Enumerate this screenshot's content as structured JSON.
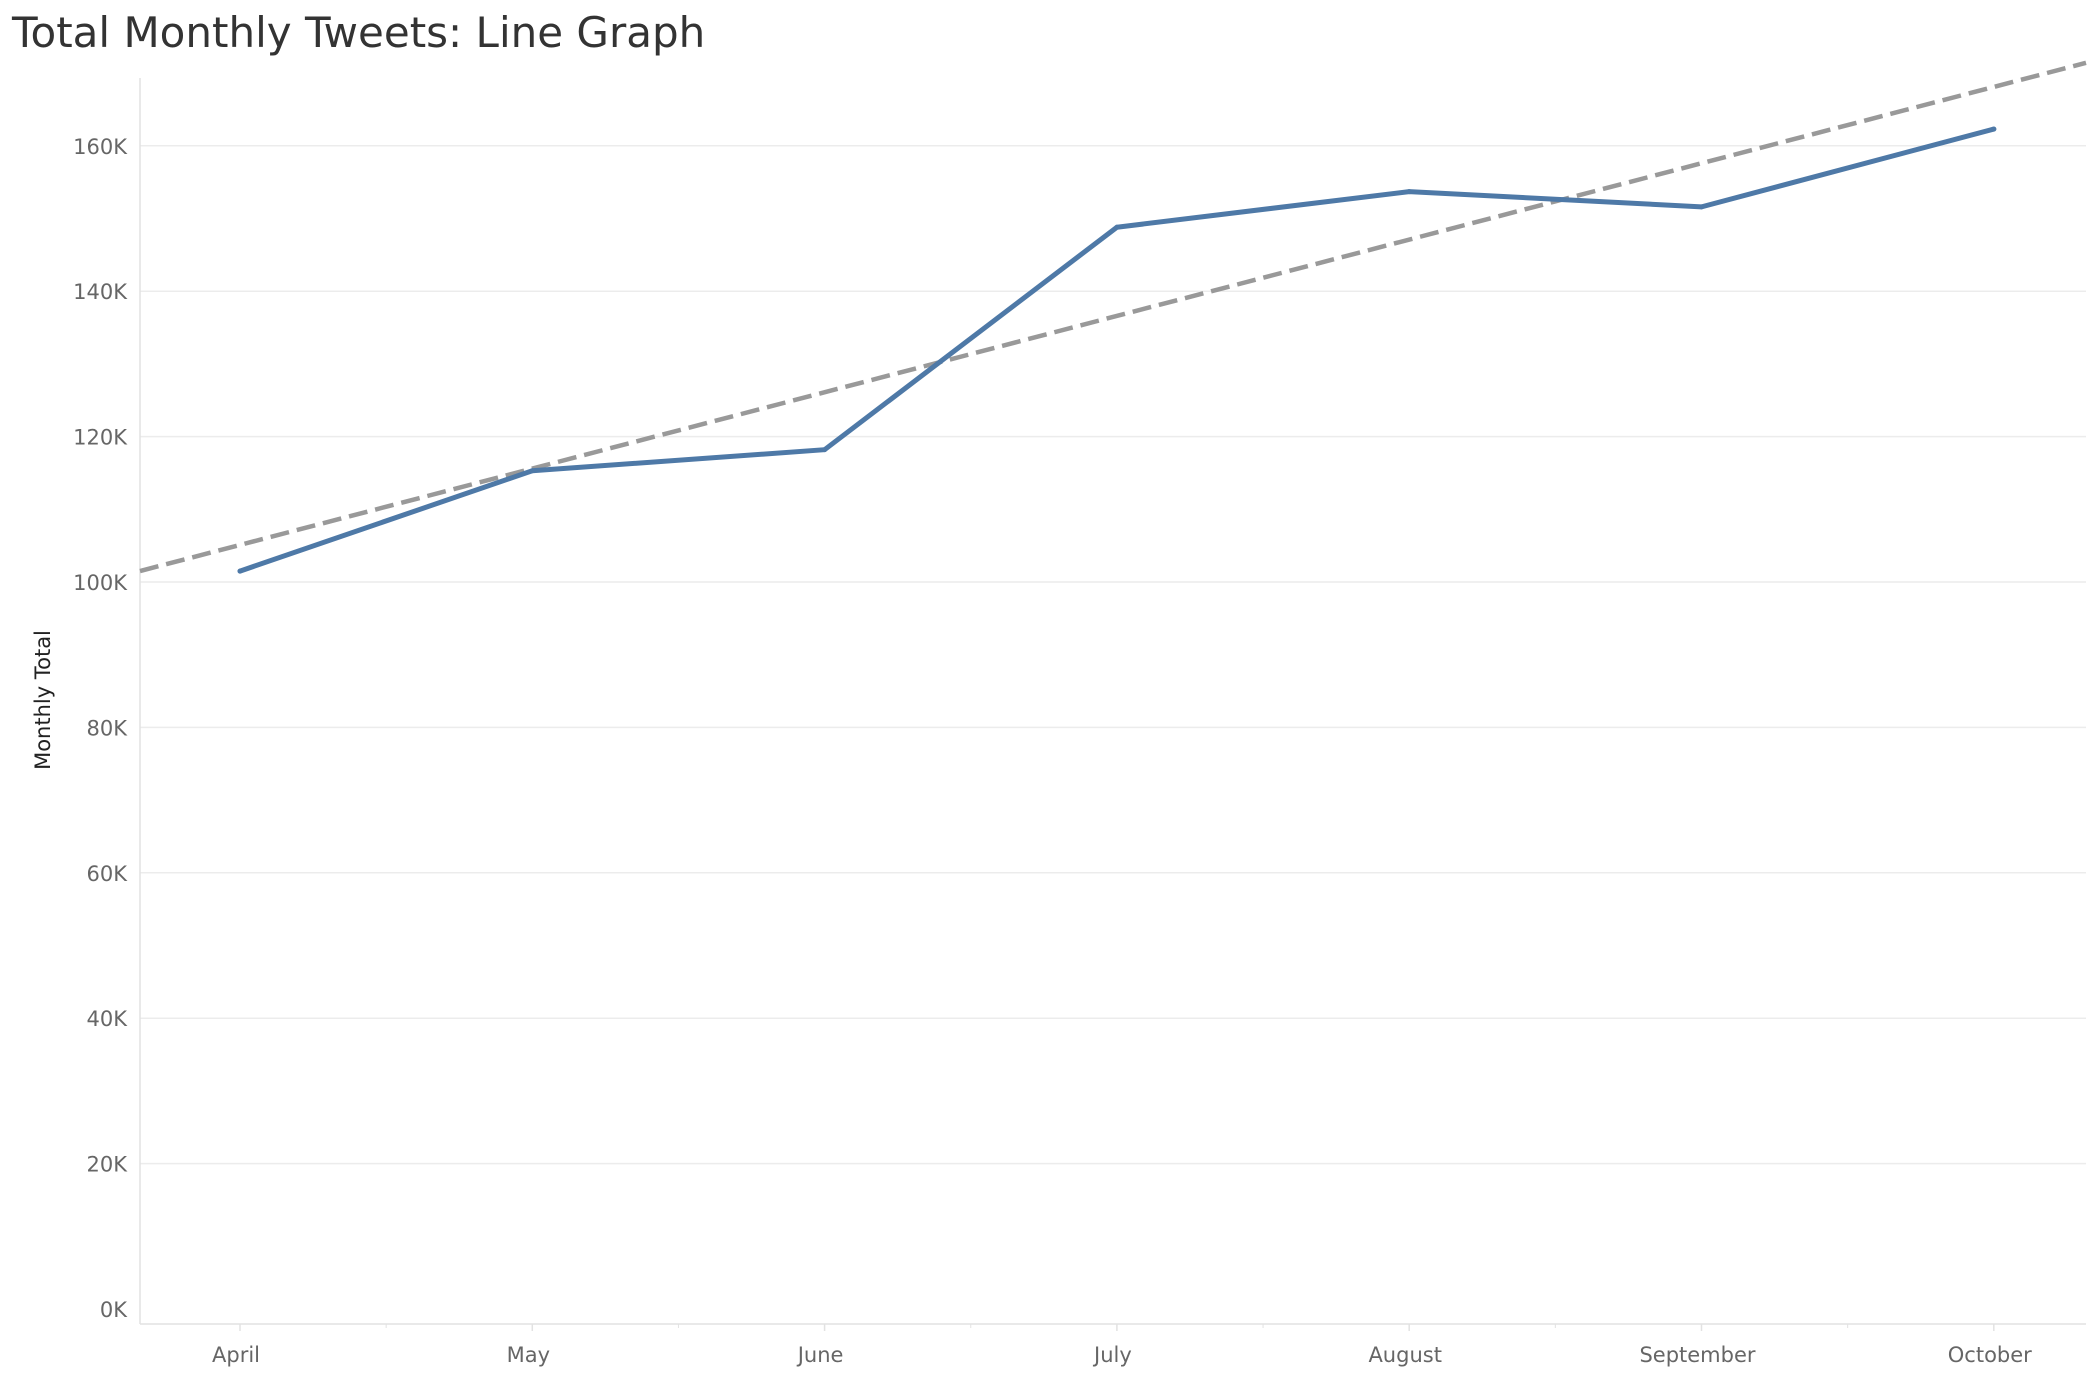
{
  "chart_data": {
    "type": "line",
    "title": "Total Monthly Tweets: Line Graph",
    "xlabel": "",
    "ylabel": "Monthly Total",
    "categories": [
      "April",
      "May",
      "June",
      "July",
      "August",
      "September",
      "October"
    ],
    "series": [
      {
        "values": [
          101500,
          115300,
          118200,
          148800,
          153700,
          151600,
          162300
        ]
      }
    ],
    "trend_line": {
      "style": "dashed",
      "values": [
        105100,
        115600,
        126100,
        136600,
        147100,
        157600,
        168100
      ]
    },
    "ylim": [
      0,
      170000
    ],
    "yticks": [
      0,
      20000,
      40000,
      60000,
      80000,
      100000,
      120000,
      140000,
      160000
    ],
    "ytick_labels": [
      "0K",
      "20K",
      "40K",
      "60K",
      "80K",
      "100K",
      "120K",
      "140K",
      "160K"
    ],
    "grid": true,
    "legend": "none",
    "colors": {
      "series": "#4e79a7",
      "trend": "#999999",
      "grid": "#ececec",
      "axis": "#e2e2e2",
      "tick_text": "#666666"
    }
  }
}
